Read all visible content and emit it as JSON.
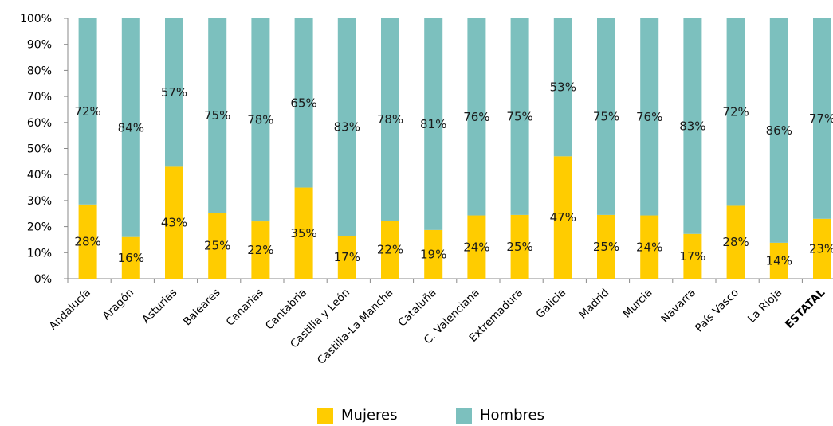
{
  "colors": {
    "mujeres": "#FFCC00",
    "hombres": "#7CC0BE",
    "axis": "#888888"
  },
  "chart_data": {
    "type": "bar",
    "stacked": true,
    "percent": true,
    "categories": [
      "Andalucía",
      "Aragón",
      "Asturias",
      "Baleares",
      "Canarias",
      "Cantabria",
      "Castilla y León",
      "Castilla-La Mancha",
      "Cataluña",
      "C. Valenciana",
      "Extremadura",
      "Galicia",
      "Madrid",
      "Murcia",
      "Navarra",
      "País Vasco",
      "La Rioja",
      "ESTATAL"
    ],
    "series": [
      {
        "name": "Mujeres",
        "values": [
          28.5,
          16,
          43,
          25.3,
          22,
          35,
          16.5,
          22.3,
          18.7,
          24.3,
          24.5,
          47,
          24.5,
          24.3,
          17.2,
          28,
          13.8,
          23
        ]
      },
      {
        "name": "Hombres",
        "values": [
          71.5,
          84,
          57,
          74.7,
          78,
          65,
          83.5,
          77.7,
          81.3,
          75.7,
          75.5,
          53,
          75.5,
          75.7,
          82.8,
          72,
          86.2,
          77
        ]
      }
    ],
    "data_labels": {
      "Mujeres": [
        "28%",
        "16%",
        "43%",
        "25%",
        "22%",
        "35%",
        "17%",
        "22%",
        "19%",
        "24%",
        "25%",
        "47%",
        "25%",
        "24%",
        "17%",
        "28%",
        "14%",
        "23%"
      ],
      "Hombres": [
        "72%",
        "84%",
        "57%",
        "75%",
        "78%",
        "65%",
        "83%",
        "78%",
        "81%",
        "76%",
        "75%",
        "53%",
        "75%",
        "76%",
        "83%",
        "72%",
        "86%",
        "77%"
      ]
    },
    "yticks": [
      "0%",
      "10%",
      "20%",
      "30%",
      "40%",
      "50%",
      "60%",
      "70%",
      "80%",
      "90%",
      "100%"
    ],
    "ylim": [
      0,
      100
    ],
    "legend_position": "bottom",
    "grid": false
  },
  "legend": {
    "items": [
      {
        "label": "Mujeres"
      },
      {
        "label": "Hombres"
      }
    ]
  }
}
